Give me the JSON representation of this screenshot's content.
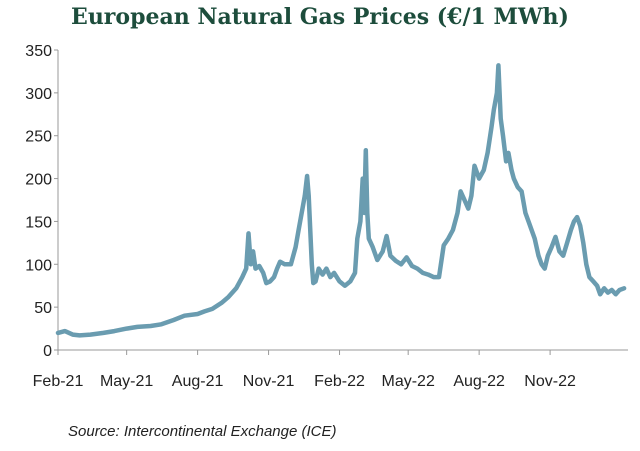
{
  "chart_data": {
    "type": "line",
    "title": "European Natural Gas Prices (€/1 MWh)",
    "source": "Source: Intercontinental Exchange (ICE)",
    "xlabel": "",
    "ylabel": "",
    "ylim": [
      0,
      350
    ],
    "yticks": [
      0,
      50,
      100,
      150,
      200,
      250,
      300,
      350
    ],
    "xlim": [
      "2021-02-01",
      "2023-02-10"
    ],
    "xticks": [
      {
        "label": "Feb-21",
        "date": "2021-02-01"
      },
      {
        "label": "May-21",
        "date": "2021-05-01"
      },
      {
        "label": "Aug-21",
        "date": "2021-08-01"
      },
      {
        "label": "Nov-21",
        "date": "2021-11-01"
      },
      {
        "label": "Feb-22",
        "date": "2022-02-01"
      },
      {
        "label": "May-22",
        "date": "2022-05-01"
      },
      {
        "label": "Aug-22",
        "date": "2022-08-01"
      },
      {
        "label": "Nov-22",
        "date": "2022-11-01"
      }
    ],
    "grid": false,
    "line_color": "#6a9cb0",
    "series": [
      {
        "points": [
          [
            "2021-02-01",
            20
          ],
          [
            "2021-02-10",
            22
          ],
          [
            "2021-02-20",
            18
          ],
          [
            "2021-03-01",
            17
          ],
          [
            "2021-03-15",
            18
          ],
          [
            "2021-04-01",
            20
          ],
          [
            "2021-04-15",
            22
          ],
          [
            "2021-05-01",
            25
          ],
          [
            "2021-05-15",
            27
          ],
          [
            "2021-06-01",
            28
          ],
          [
            "2021-06-15",
            30
          ],
          [
            "2021-07-01",
            35
          ],
          [
            "2021-07-15",
            40
          ],
          [
            "2021-08-01",
            42
          ],
          [
            "2021-08-10",
            45
          ],
          [
            "2021-08-20",
            48
          ],
          [
            "2021-09-01",
            55
          ],
          [
            "2021-09-10",
            62
          ],
          [
            "2021-09-20",
            72
          ],
          [
            "2021-09-28",
            85
          ],
          [
            "2021-10-03",
            95
          ],
          [
            "2021-10-06",
            136
          ],
          [
            "2021-10-09",
            100
          ],
          [
            "2021-10-12",
            115
          ],
          [
            "2021-10-15",
            95
          ],
          [
            "2021-10-20",
            98
          ],
          [
            "2021-10-25",
            90
          ],
          [
            "2021-10-29",
            78
          ],
          [
            "2021-11-03",
            80
          ],
          [
            "2021-11-08",
            85
          ],
          [
            "2021-11-12",
            95
          ],
          [
            "2021-11-16",
            103
          ],
          [
            "2021-11-22",
            100
          ],
          [
            "2021-11-30",
            100
          ],
          [
            "2021-12-06",
            120
          ],
          [
            "2021-12-10",
            140
          ],
          [
            "2021-12-14",
            160
          ],
          [
            "2021-12-18",
            180
          ],
          [
            "2021-12-21",
            203
          ],
          [
            "2021-12-23",
            180
          ],
          [
            "2021-12-27",
            100
          ],
          [
            "2021-12-29",
            78
          ],
          [
            "2022-01-01",
            80
          ],
          [
            "2022-01-05",
            95
          ],
          [
            "2022-01-10",
            88
          ],
          [
            "2022-01-15",
            95
          ],
          [
            "2022-01-20",
            85
          ],
          [
            "2022-01-25",
            90
          ],
          [
            "2022-02-01",
            80
          ],
          [
            "2022-02-08",
            75
          ],
          [
            "2022-02-15",
            80
          ],
          [
            "2022-02-21",
            90
          ],
          [
            "2022-02-24",
            130
          ],
          [
            "2022-02-28",
            150
          ],
          [
            "2022-03-03",
            200
          ],
          [
            "2022-03-05",
            160
          ],
          [
            "2022-03-07",
            233
          ],
          [
            "2022-03-09",
            160
          ],
          [
            "2022-03-11",
            130
          ],
          [
            "2022-03-16",
            120
          ],
          [
            "2022-03-22",
            105
          ],
          [
            "2022-03-29",
            115
          ],
          [
            "2022-04-03",
            133
          ],
          [
            "2022-04-08",
            110
          ],
          [
            "2022-04-15",
            104
          ],
          [
            "2022-04-22",
            100
          ],
          [
            "2022-04-29",
            108
          ],
          [
            "2022-05-06",
            98
          ],
          [
            "2022-05-13",
            95
          ],
          [
            "2022-05-20",
            90
          ],
          [
            "2022-05-27",
            88
          ],
          [
            "2022-06-03",
            85
          ],
          [
            "2022-06-10",
            85
          ],
          [
            "2022-06-16",
            122
          ],
          [
            "2022-06-22",
            130
          ],
          [
            "2022-06-28",
            140
          ],
          [
            "2022-07-04",
            160
          ],
          [
            "2022-07-08",
            185
          ],
          [
            "2022-07-13",
            175
          ],
          [
            "2022-07-18",
            165
          ],
          [
            "2022-07-22",
            180
          ],
          [
            "2022-07-26",
            215
          ],
          [
            "2022-08-01",
            200
          ],
          [
            "2022-08-07",
            210
          ],
          [
            "2022-08-12",
            230
          ],
          [
            "2022-08-17",
            260
          ],
          [
            "2022-08-20",
            280
          ],
          [
            "2022-08-24",
            300
          ],
          [
            "2022-08-26",
            332
          ],
          [
            "2022-08-29",
            270
          ],
          [
            "2022-09-01",
            250
          ],
          [
            "2022-09-05",
            220
          ],
          [
            "2022-09-08",
            230
          ],
          [
            "2022-09-12",
            210
          ],
          [
            "2022-09-15",
            200
          ],
          [
            "2022-09-20",
            190
          ],
          [
            "2022-09-25",
            185
          ],
          [
            "2022-09-30",
            160
          ],
          [
            "2022-10-04",
            150
          ],
          [
            "2022-10-08",
            140
          ],
          [
            "2022-10-12",
            130
          ],
          [
            "2022-10-17",
            110
          ],
          [
            "2022-10-21",
            100
          ],
          [
            "2022-10-25",
            95
          ],
          [
            "2022-10-29",
            110
          ],
          [
            "2022-11-03",
            120
          ],
          [
            "2022-11-08",
            132
          ],
          [
            "2022-11-13",
            115
          ],
          [
            "2022-11-18",
            110
          ],
          [
            "2022-11-23",
            125
          ],
          [
            "2022-11-28",
            140
          ],
          [
            "2022-12-02",
            150
          ],
          [
            "2022-12-06",
            155
          ],
          [
            "2022-12-10",
            145
          ],
          [
            "2022-12-14",
            125
          ],
          [
            "2022-12-18",
            100
          ],
          [
            "2022-12-22",
            85
          ],
          [
            "2022-12-27",
            80
          ],
          [
            "2023-01-01",
            75
          ],
          [
            "2023-01-05",
            65
          ],
          [
            "2023-01-10",
            72
          ],
          [
            "2023-01-15",
            67
          ],
          [
            "2023-01-20",
            70
          ],
          [
            "2023-01-25",
            65
          ],
          [
            "2023-01-30",
            70
          ],
          [
            "2023-02-05",
            72
          ]
        ]
      }
    ]
  }
}
